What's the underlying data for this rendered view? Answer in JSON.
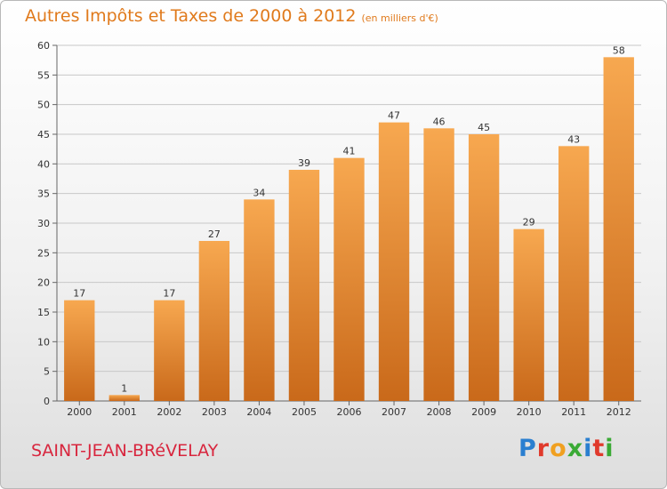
{
  "title": "Autres Impôts et Taxes de 2000 à 2012",
  "unit": "(en milliers d'€)",
  "commune": "SAINT-JEAN-BRéVELAY",
  "logo": {
    "letters": [
      "P",
      "r",
      "o",
      "x",
      "i",
      "t",
      "i"
    ],
    "colors": [
      "#2a7fd0",
      "#e03a2c",
      "#f0a020",
      "#3aaa35",
      "#2a7fd0",
      "#e03a2c",
      "#3aaa35"
    ]
  },
  "colors": {
    "title": "#e07a1c",
    "bar_top": "#f7a850",
    "bar_bottom": "#c9691a",
    "commune": "#d8263e"
  },
  "chart_data": {
    "type": "bar",
    "categories": [
      "2000",
      "2001",
      "2002",
      "2003",
      "2004",
      "2005",
      "2006",
      "2007",
      "2008",
      "2009",
      "2010",
      "2011",
      "2012"
    ],
    "values": [
      17,
      1,
      17,
      27,
      34,
      39,
      41,
      47,
      46,
      45,
      29,
      43,
      58
    ],
    "ylim": [
      0,
      60
    ],
    "yticks": [
      0,
      5,
      10,
      15,
      20,
      25,
      30,
      35,
      40,
      45,
      50,
      55,
      60
    ],
    "grid": true,
    "legend": "none"
  }
}
